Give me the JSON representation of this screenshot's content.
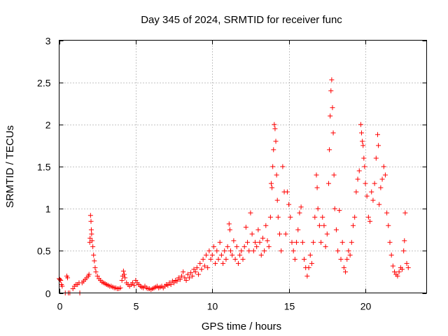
{
  "chart_data": {
    "type": "scatter",
    "title": "Day 345 of 2024, SRMTID for receiver func",
    "xlabel": "GPS time / hours",
    "ylabel": "SRMTID / TECUs",
    "xlim": [
      0,
      24
    ],
    "ylim": [
      0,
      3
    ],
    "xticks": [
      0,
      5,
      10,
      15,
      20
    ],
    "yticks": [
      0,
      0.5,
      1,
      1.5,
      2,
      2.5,
      3
    ],
    "xtick_labels": [
      "0",
      "5",
      "10",
      "15",
      "20"
    ],
    "ytick_labels": [
      "0",
      "0.5",
      "1",
      "1.5",
      "2",
      "2.5",
      "3"
    ],
    "grid": true,
    "marker": "plus",
    "series_color": "#ff0000",
    "series": [
      {
        "name": "SRMTID",
        "points": [
          [
            0.0,
            0.17
          ],
          [
            0.05,
            0.16
          ],
          [
            0.1,
            0.15
          ],
          [
            0.15,
            0.1
          ],
          [
            0.2,
            0.08
          ],
          [
            0.5,
            0.2
          ],
          [
            0.55,
            0.18
          ],
          [
            0.4,
            0.0
          ],
          [
            0.6,
            0.0
          ],
          [
            0.7,
            0.0
          ],
          [
            0.9,
            0.05
          ],
          [
            1.0,
            0.08
          ],
          [
            1.1,
            0.1
          ],
          [
            1.2,
            0.1
          ],
          [
            1.3,
            0.12
          ],
          [
            1.35,
            0.0
          ],
          [
            1.5,
            0.12
          ],
          [
            1.6,
            0.14
          ],
          [
            1.7,
            0.16
          ],
          [
            1.8,
            0.18
          ],
          [
            1.9,
            0.2
          ],
          [
            1.95,
            0.22
          ],
          [
            2.0,
            0.6
          ],
          [
            2.02,
            0.65
          ],
          [
            2.05,
            0.92
          ],
          [
            2.08,
            0.85
          ],
          [
            2.1,
            0.75
          ],
          [
            2.12,
            0.7
          ],
          [
            2.15,
            0.62
          ],
          [
            2.2,
            0.55
          ],
          [
            2.25,
            0.45
          ],
          [
            2.3,
            0.38
          ],
          [
            2.35,
            0.3
          ],
          [
            2.4,
            0.25
          ],
          [
            2.5,
            0.2
          ],
          [
            2.6,
            0.17
          ],
          [
            2.7,
            0.15
          ],
          [
            2.8,
            0.13
          ],
          [
            2.9,
            0.12
          ],
          [
            3.0,
            0.11
          ],
          [
            3.1,
            0.1
          ],
          [
            3.2,
            0.09
          ],
          [
            3.3,
            0.08
          ],
          [
            3.4,
            0.08
          ],
          [
            3.5,
            0.07
          ],
          [
            3.6,
            0.06
          ],
          [
            3.7,
            0.06
          ],
          [
            3.8,
            0.05
          ],
          [
            3.9,
            0.05
          ],
          [
            4.0,
            0.06
          ],
          [
            4.1,
            0.15
          ],
          [
            4.15,
            0.2
          ],
          [
            4.2,
            0.26
          ],
          [
            4.25,
            0.22
          ],
          [
            4.3,
            0.18
          ],
          [
            4.4,
            0.12
          ],
          [
            4.5,
            0.1
          ],
          [
            4.6,
            0.08
          ],
          [
            4.7,
            0.1
          ],
          [
            4.8,
            0.12
          ],
          [
            4.9,
            0.09
          ],
          [
            5.0,
            0.15
          ],
          [
            5.1,
            0.12
          ],
          [
            5.2,
            0.1
          ],
          [
            5.3,
            0.08
          ],
          [
            5.4,
            0.07
          ],
          [
            5.5,
            0.06
          ],
          [
            5.6,
            0.08
          ],
          [
            5.7,
            0.06
          ],
          [
            5.8,
            0.05
          ],
          [
            5.9,
            0.05
          ],
          [
            6.0,
            0.04
          ],
          [
            6.1,
            0.05
          ],
          [
            6.2,
            0.06
          ],
          [
            6.3,
            0.07
          ],
          [
            6.4,
            0.08
          ],
          [
            6.5,
            0.06
          ],
          [
            6.6,
            0.07
          ],
          [
            6.7,
            0.08
          ],
          [
            6.8,
            0.06
          ],
          [
            6.9,
            0.08
          ],
          [
            7.0,
            0.1
          ],
          [
            7.1,
            0.09
          ],
          [
            7.2,
            0.12
          ],
          [
            7.3,
            0.1
          ],
          [
            7.4,
            0.14
          ],
          [
            7.5,
            0.12
          ],
          [
            7.6,
            0.15
          ],
          [
            7.7,
            0.14
          ],
          [
            7.8,
            0.18
          ],
          [
            7.9,
            0.16
          ],
          [
            8.0,
            0.2
          ],
          [
            8.1,
            0.25
          ],
          [
            8.2,
            0.18
          ],
          [
            8.3,
            0.15
          ],
          [
            8.4,
            0.22
          ],
          [
            8.5,
            0.18
          ],
          [
            8.6,
            0.24
          ],
          [
            8.7,
            0.2
          ],
          [
            8.8,
            0.28
          ],
          [
            8.9,
            0.25
          ],
          [
            9.0,
            0.3
          ],
          [
            9.1,
            0.22
          ],
          [
            9.2,
            0.35
          ],
          [
            9.3,
            0.28
          ],
          [
            9.4,
            0.4
          ],
          [
            9.5,
            0.32
          ],
          [
            9.6,
            0.45
          ],
          [
            9.7,
            0.3
          ],
          [
            9.8,
            0.5
          ],
          [
            9.9,
            0.4
          ],
          [
            10.0,
            0.45
          ],
          [
            10.1,
            0.55
          ],
          [
            10.2,
            0.35
          ],
          [
            10.3,
            0.5
          ],
          [
            10.4,
            0.4
          ],
          [
            10.5,
            0.6
          ],
          [
            10.6,
            0.45
          ],
          [
            10.7,
            0.35
          ],
          [
            10.8,
            0.5
          ],
          [
            10.9,
            0.4
          ],
          [
            11.0,
            0.55
          ],
          [
            11.1,
            0.82
          ],
          [
            11.15,
            0.75
          ],
          [
            11.2,
            0.5
          ],
          [
            11.3,
            0.45
          ],
          [
            11.4,
            0.62
          ],
          [
            11.5,
            0.4
          ],
          [
            11.6,
            0.55
          ],
          [
            11.7,
            0.35
          ],
          [
            11.8,
            0.45
          ],
          [
            11.9,
            0.5
          ],
          [
            12.0,
            0.4
          ],
          [
            12.1,
            0.55
          ],
          [
            12.2,
            0.78
          ],
          [
            12.3,
            0.6
          ],
          [
            12.4,
            0.5
          ],
          [
            12.5,
            0.95
          ],
          [
            12.6,
            0.7
          ],
          [
            12.7,
            0.5
          ],
          [
            12.8,
            0.6
          ],
          [
            12.9,
            0.55
          ],
          [
            13.0,
            0.75
          ],
          [
            13.1,
            0.6
          ],
          [
            13.2,
            0.45
          ],
          [
            13.3,
            0.65
          ],
          [
            13.4,
            0.5
          ],
          [
            13.5,
            0.8
          ],
          [
            13.6,
            0.62
          ],
          [
            13.7,
            0.55
          ],
          [
            13.8,
            0.9
          ],
          [
            13.85,
            1.3
          ],
          [
            13.9,
            1.25
          ],
          [
            13.95,
            1.5
          ],
          [
            14.0,
            1.7
          ],
          [
            14.05,
            2.0
          ],
          [
            14.1,
            1.95
          ],
          [
            14.15,
            1.8
          ],
          [
            14.2,
            1.4
          ],
          [
            14.25,
            1.1
          ],
          [
            14.3,
            0.9
          ],
          [
            14.4,
            0.7
          ],
          [
            14.5,
            0.5
          ],
          [
            14.6,
            1.5
          ],
          [
            14.7,
            1.2
          ],
          [
            14.8,
            0.7
          ],
          [
            14.9,
            1.2
          ],
          [
            15.0,
            1.05
          ],
          [
            15.1,
            0.9
          ],
          [
            15.2,
            0.6
          ],
          [
            15.3,
            0.5
          ],
          [
            15.4,
            0.4
          ],
          [
            15.5,
            0.6
          ],
          [
            15.6,
            0.75
          ],
          [
            15.7,
            0.95
          ],
          [
            15.8,
            1.02
          ],
          [
            15.9,
            0.6
          ],
          [
            16.0,
            0.4
          ],
          [
            16.1,
            0.3
          ],
          [
            16.2,
            0.2
          ],
          [
            16.3,
            0.3
          ],
          [
            16.4,
            0.45
          ],
          [
            16.5,
            0.35
          ],
          [
            16.6,
            0.6
          ],
          [
            16.7,
            0.9
          ],
          [
            16.8,
            1.4
          ],
          [
            16.85,
            1.25
          ],
          [
            16.9,
            1.0
          ],
          [
            17.0,
            0.8
          ],
          [
            17.1,
            0.6
          ],
          [
            17.2,
            0.9
          ],
          [
            17.3,
            0.8
          ],
          [
            17.4,
            0.55
          ],
          [
            17.5,
            0.7
          ],
          [
            17.6,
            1.3
          ],
          [
            17.65,
            1.7
          ],
          [
            17.7,
            2.1
          ],
          [
            17.75,
            2.4
          ],
          [
            17.8,
            2.53
          ],
          [
            17.85,
            2.2
          ],
          [
            17.9,
            1.9
          ],
          [
            17.95,
            1.4
          ],
          [
            18.0,
            1.0
          ],
          [
            18.1,
            0.75
          ],
          [
            18.2,
            0.5
          ],
          [
            18.3,
            0.98
          ],
          [
            18.4,
            0.4
          ],
          [
            18.5,
            0.6
          ],
          [
            18.6,
            0.3
          ],
          [
            18.7,
            0.25
          ],
          [
            18.8,
            0.4
          ],
          [
            18.9,
            0.5
          ],
          [
            19.0,
            0.45
          ],
          [
            19.1,
            0.6
          ],
          [
            19.2,
            0.8
          ],
          [
            19.3,
            0.9
          ],
          [
            19.4,
            1.2
          ],
          [
            19.5,
            1.35
          ],
          [
            19.6,
            1.45
          ],
          [
            19.7,
            2.0
          ],
          [
            19.75,
            1.9
          ],
          [
            19.8,
            1.8
          ],
          [
            19.85,
            1.75
          ],
          [
            19.9,
            1.6
          ],
          [
            19.95,
            1.5
          ],
          [
            20.0,
            1.3
          ],
          [
            20.1,
            1.15
          ],
          [
            20.2,
            0.9
          ],
          [
            20.3,
            0.85
          ],
          [
            20.4,
            1.2
          ],
          [
            20.5,
            1.1
          ],
          [
            20.6,
            1.3
          ],
          [
            20.7,
            1.6
          ],
          [
            20.8,
            1.88
          ],
          [
            20.85,
            1.75
          ],
          [
            20.9,
            1.05
          ],
          [
            21.0,
            1.25
          ],
          [
            21.1,
            1.35
          ],
          [
            21.2,
            1.5
          ],
          [
            21.3,
            1.4
          ],
          [
            21.4,
            0.95
          ],
          [
            21.5,
            0.8
          ],
          [
            21.6,
            0.6
          ],
          [
            21.7,
            0.45
          ],
          [
            21.8,
            0.32
          ],
          [
            21.9,
            0.25
          ],
          [
            22.0,
            0.22
          ],
          [
            22.1,
            0.2
          ],
          [
            22.2,
            0.25
          ],
          [
            22.3,
            0.3
          ],
          [
            22.4,
            0.28
          ],
          [
            22.5,
            0.5
          ],
          [
            22.55,
            0.62
          ],
          [
            22.6,
            0.95
          ],
          [
            22.7,
            0.35
          ],
          [
            22.8,
            0.3
          ]
        ]
      }
    ]
  }
}
